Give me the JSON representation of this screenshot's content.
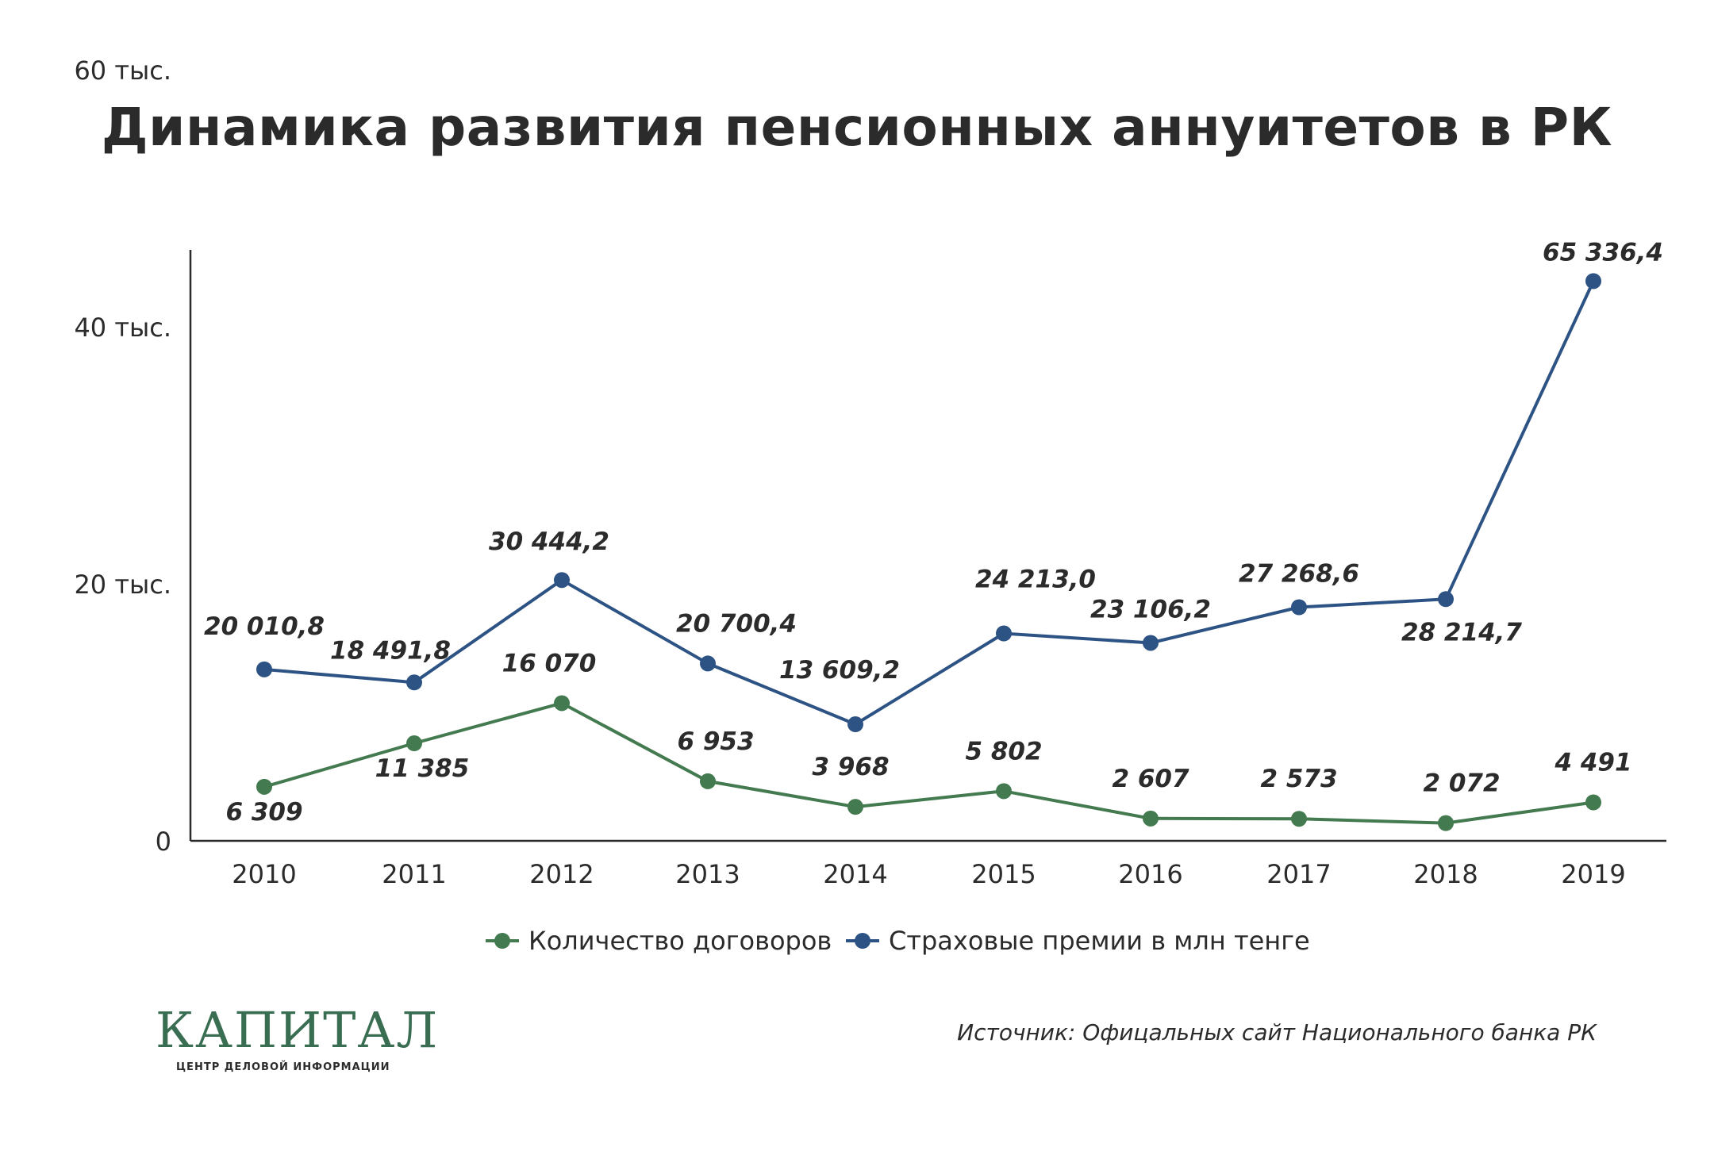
{
  "title": "Динамика развития пенсионных аннуитетов в РК",
  "source": "Источник: Офицальных сайт Национального банка РК",
  "logo": {
    "word": "КАПИТАЛ",
    "subtitle": "ЦЕНТР ДЕЛОВОЙ ИНФОРМАЦИИ"
  },
  "colors": {
    "contracts": "#447a4f",
    "premiums": "#2d5384",
    "text": "#2b2b2b",
    "logo": "#3a6e52"
  },
  "chart_data": {
    "type": "line",
    "categories": [
      "2010",
      "2011",
      "2012",
      "2013",
      "2014",
      "2015",
      "2016",
      "2017",
      "2018",
      "2019"
    ],
    "yticks": [
      0,
      20000,
      40000,
      60000
    ],
    "ytick_labels": [
      "0",
      "20 тыс.",
      "40 тыс.",
      "60 тыс."
    ],
    "ylim": [
      0,
      70000
    ],
    "grid": false,
    "legend_position": "bottom",
    "series": [
      {
        "name": "Количество договоров",
        "color": "#447a4f",
        "values": [
          6309,
          11385,
          16070,
          6953,
          3968,
          5802,
          2607,
          2573,
          2072,
          4491
        ],
        "labels": [
          "6 309",
          "11 385",
          "16 070",
          "6 953",
          "3 968",
          "5 802",
          "2 607",
          "2 573",
          "2 072",
          "4 491"
        ]
      },
      {
        "name": "Страховые премии в млн тенге",
        "color": "#2d5384",
        "values": [
          20010.8,
          18491.8,
          30444.2,
          20700.4,
          13609.2,
          24213.0,
          23106.2,
          27268.6,
          28214.7,
          65336.4
        ],
        "labels": [
          "20 010,8",
          "18 491,8",
          "30 444,2",
          "20 700,4",
          "13 609,2",
          "24 213,0",
          "23 106,2",
          "27 268,6",
          "28 214,7",
          "65 336,4"
        ]
      }
    ]
  }
}
